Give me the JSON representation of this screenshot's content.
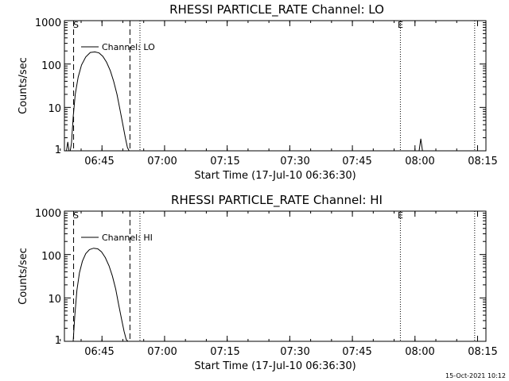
{
  "chart_data": [
    {
      "type": "line",
      "title": "RHESSI PARTICLE_RATE Channel: LO",
      "xlabel": "Start Time (17-Jul-10 06:36:30)",
      "ylabel": "Counts/sec",
      "yscale": "log",
      "ylim": [
        1,
        1000
      ],
      "xlim_minutes": [
        -0.5,
        100.5
      ],
      "x_ticks": [
        "06:45",
        "07:00",
        "07:15",
        "07:30",
        "07:45",
        "08:00",
        "08:15"
      ],
      "y_ticks": [
        "1",
        "10",
        "100",
        "1000"
      ],
      "legend": "Channel: LO",
      "markers": [
        {
          "label": "S",
          "t": 0
        },
        {
          "label": "E",
          "t": 80
        }
      ],
      "dashed_lines_t": [
        1.7,
        15.2
      ],
      "dotted_lines_t": [
        17.6,
        80,
        97.8
      ],
      "series": [
        {
          "name": "Channel: LO",
          "x": [
            0.0,
            0.3,
            0.6,
            0.9,
            1.2,
            1.6,
            2.1,
            2.8,
            3.6,
            4.6,
            5.7,
            6.8,
            7.8,
            8.7,
            9.6,
            10.5,
            11.3,
            12.1,
            12.8,
            13.5,
            14.1,
            14.6,
            15.0,
            84.5,
            84.9,
            85.3
          ],
          "values": [
            1.0,
            1.6,
            1.0,
            1.0,
            1.5,
            6.0,
            20,
            50,
            95,
            145,
            185,
            190,
            180,
            150,
            110,
            70,
            40,
            20,
            9,
            4,
            2,
            1.2,
            1.0,
            1.0,
            1.9,
            1.0
          ]
        }
      ]
    },
    {
      "type": "line",
      "title": "RHESSI PARTICLE_RATE Channel: HI",
      "xlabel": "Start Time (17-Jul-10 06:36:30)",
      "ylabel": "Counts/sec",
      "yscale": "log",
      "ylim": [
        1,
        1000
      ],
      "xlim_minutes": [
        -0.5,
        100.5
      ],
      "x_ticks": [
        "06:45",
        "07:00",
        "07:15",
        "07:30",
        "07:45",
        "08:00",
        "08:15"
      ],
      "y_ticks": [
        "1",
        "10",
        "100",
        "1000"
      ],
      "legend": "Channel: HI",
      "markers": [
        {
          "label": "S",
          "t": 0
        },
        {
          "label": "E",
          "t": 80
        }
      ],
      "dashed_lines_t": [
        1.7,
        15.2
      ],
      "dotted_lines_t": [
        17.6,
        80,
        97.8
      ],
      "series": [
        {
          "name": "Channel: HI",
          "x": [
            1.6,
            2.0,
            2.5,
            3.1,
            3.8,
            4.6,
            5.5,
            6.5,
            7.5,
            8.4,
            9.3,
            10.2,
            11.0,
            11.8,
            12.5,
            13.2,
            13.8,
            14.3,
            14.7
          ],
          "values": [
            1.0,
            4.0,
            15,
            38,
            70,
            105,
            130,
            140,
            135,
            115,
            85,
            55,
            32,
            16,
            7,
            3.2,
            1.7,
            1.1,
            1.0
          ]
        }
      ]
    }
  ],
  "footer": {
    "timestamp": "15-Oct-2021 10:12"
  }
}
